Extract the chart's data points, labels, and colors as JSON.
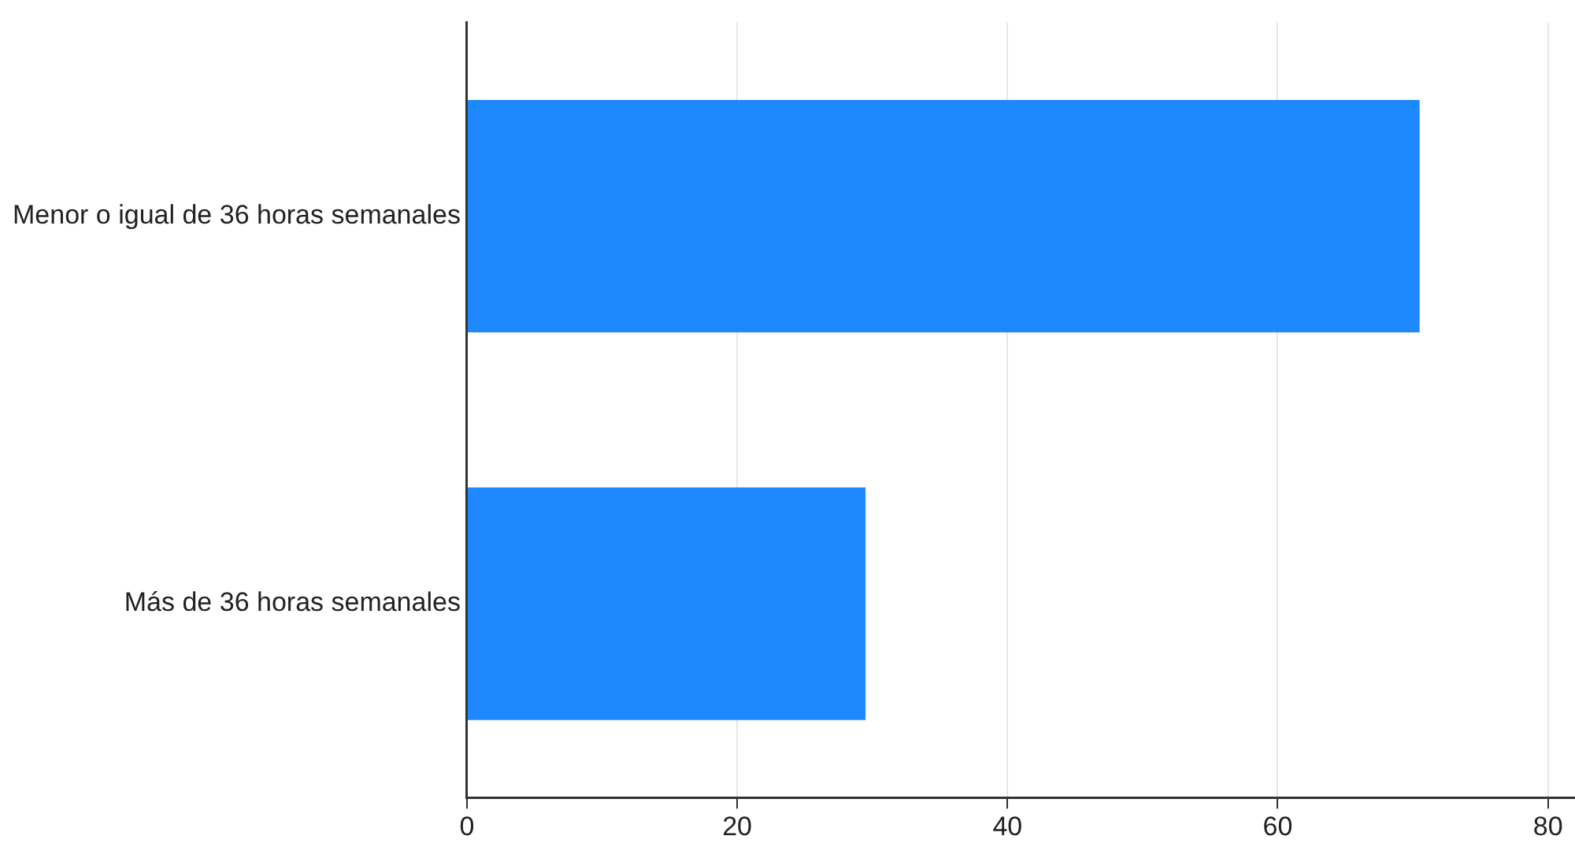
{
  "chart_data": {
    "type": "bar",
    "orientation": "horizontal",
    "categories": [
      "Menor o igual de 36 horas semanales",
      "Más de 36 horas semanales"
    ],
    "values": [
      70.5,
      29.5
    ],
    "color": "#1e88ff",
    "xlim": [
      0,
      82
    ],
    "xticks": [
      0,
      20,
      40,
      60,
      80
    ],
    "grid": "x",
    "legend": false
  }
}
